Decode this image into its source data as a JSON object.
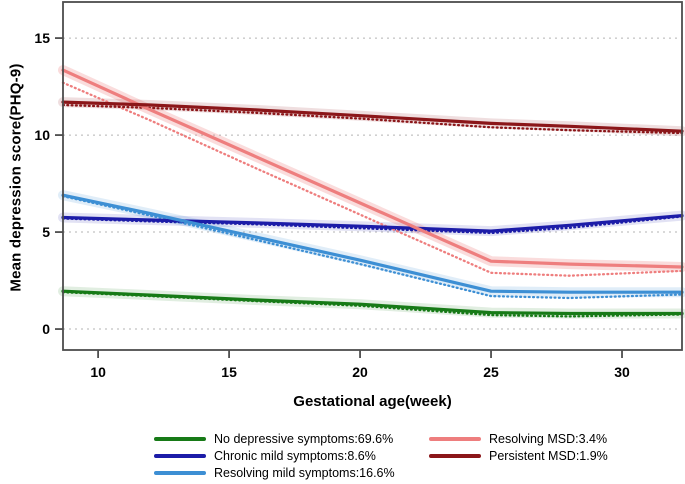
{
  "chart_data": {
    "type": "line",
    "title": "",
    "xlabel": "Gestational age(week)",
    "ylabel": "Mean depression score(PHQ-9)",
    "xlim": [
      8.66,
      32.29
    ],
    "ylim": [
      -1.08,
      16.86
    ],
    "xticks": [
      10,
      15,
      20,
      25,
      30
    ],
    "yticks": [
      0,
      5,
      10,
      15
    ],
    "grid": "horizontal dashed gridlines at yticks",
    "legend_position": "bottom, two columns",
    "axis_color": "#4d4d4d",
    "grid_color": "#b3b3b3",
    "line_styles": "solid = estimated trajectory with shaded band, dotted = observed mean",
    "x_weeks": [
      8.66,
      12,
      16,
      20,
      25,
      28,
      32.29
    ],
    "series": [
      {
        "label": "No depressive symptoms:69.6%",
        "color": "#177a17",
        "band_opacity": 0.13,
        "solid": {
          "x": [
            8.66,
            12,
            16,
            20,
            25,
            28,
            32.29
          ],
          "y": [
            1.95,
            1.75,
            1.5,
            1.28,
            0.85,
            0.8,
            0.8
          ]
        },
        "dotted": {
          "x": [
            8.66,
            12,
            16,
            20,
            25,
            28,
            32.29
          ],
          "y": [
            1.9,
            1.7,
            1.44,
            1.2,
            0.72,
            0.65,
            0.75
          ]
        }
      },
      {
        "label": "Chronic mild symptoms:8.6%",
        "color": "#1c1ca8",
        "band_opacity": 0.13,
        "solid": {
          "x": [
            8.66,
            12,
            16,
            20,
            25,
            28,
            32.29
          ],
          "y": [
            5.75,
            5.62,
            5.47,
            5.3,
            5.05,
            5.35,
            5.85
          ]
        },
        "dotted": {
          "x": [
            8.66,
            12,
            16,
            20,
            25,
            28,
            32.29
          ],
          "y": [
            5.7,
            5.55,
            5.4,
            5.2,
            4.95,
            5.22,
            5.8
          ]
        }
      },
      {
        "label": "Resolving mild symptoms:16.6%",
        "color": "#3d8fd4",
        "band_opacity": 0.16,
        "solid": {
          "x": [
            8.66,
            12,
            16,
            20,
            25,
            28,
            32.29
          ],
          "y": [
            6.9,
            5.95,
            4.75,
            3.55,
            1.95,
            1.9,
            1.9
          ]
        },
        "dotted": {
          "x": [
            8.66,
            12,
            16,
            20,
            25,
            28,
            32.29
          ],
          "y": [
            6.85,
            5.85,
            4.6,
            3.35,
            1.7,
            1.6,
            1.78
          ]
        }
      },
      {
        "label": "Resolving MSD:3.4%",
        "color": "#ee7e7e",
        "band_opacity": 0.27,
        "solid": {
          "x": [
            8.66,
            12,
            16,
            20,
            25,
            28,
            32.29
          ],
          "y": [
            13.35,
            11.3,
            8.9,
            6.5,
            3.5,
            3.35,
            3.2
          ]
        },
        "dotted": {
          "x": [
            8.66,
            12,
            16,
            20,
            25,
            28,
            32.29
          ],
          "y": [
            12.7,
            10.75,
            8.3,
            5.9,
            2.9,
            2.75,
            3.0
          ]
        }
      },
      {
        "label": "Persistent MSD:1.9%",
        "color": "#8b1619",
        "band_opacity": 0.14,
        "solid": {
          "x": [
            8.66,
            12,
            16,
            20,
            25,
            28,
            32.29
          ],
          "y": [
            11.7,
            11.55,
            11.3,
            11.0,
            10.6,
            10.45,
            10.2
          ]
        },
        "dotted": {
          "x": [
            8.66,
            12,
            16,
            20,
            25,
            28,
            32.29
          ],
          "y": [
            11.55,
            11.4,
            11.15,
            10.85,
            10.4,
            10.25,
            10.1
          ]
        }
      }
    ],
    "legend_columns": [
      [
        0,
        1,
        2
      ],
      [
        3,
        4
      ]
    ]
  }
}
